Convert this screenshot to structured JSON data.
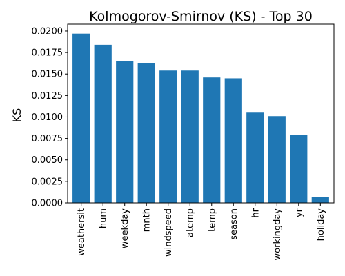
{
  "chart_data": {
    "type": "bar",
    "title": "Kolmogorov-Smirnov (KS) - Top 30",
    "xlabel": "",
    "ylabel": "KS",
    "categories": [
      "weathersit",
      "hum",
      "weekday",
      "mnth",
      "windspeed",
      "atemp",
      "temp",
      "season",
      "hr",
      "workingday",
      "yr",
      "holiday"
    ],
    "values": [
      0.0197,
      0.0184,
      0.0165,
      0.0163,
      0.0154,
      0.0154,
      0.0146,
      0.0145,
      0.0105,
      0.0101,
      0.0079,
      0.0007
    ],
    "ylim": [
      0,
      0.0208
    ],
    "yticks": [
      "0.0000",
      "0.0025",
      "0.0050",
      "0.0075",
      "0.0100",
      "0.0125",
      "0.0150",
      "0.0175",
      "0.0200"
    ],
    "bar_color": "#1f77b4",
    "grid": false,
    "legend": "none"
  }
}
